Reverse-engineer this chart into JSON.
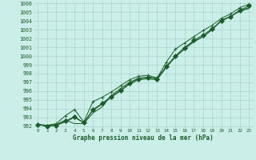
{
  "title": "Graphe pression niveau de la mer (hPa)",
  "bg_color": "#cceee8",
  "grid_color": "#aad4cc",
  "line_color": "#1a5c2a",
  "xlim": [
    -0.5,
    23.5
  ],
  "ylim": [
    991.8,
    1006.2
  ],
  "xtick_labels": [
    "0",
    "1",
    "2",
    "3",
    "4",
    "5",
    "6",
    "7",
    "8",
    "9",
    "10",
    "11",
    "12",
    "13",
    "14",
    "15",
    "16",
    "17",
    "18",
    "19",
    "20",
    "21",
    "22",
    "23"
  ],
  "xticks": [
    0,
    1,
    2,
    3,
    4,
    5,
    6,
    7,
    8,
    9,
    10,
    11,
    12,
    13,
    14,
    15,
    16,
    17,
    18,
    19,
    20,
    21,
    22,
    23
  ],
  "yticks": [
    992,
    993,
    994,
    995,
    996,
    997,
    998,
    999,
    1000,
    1001,
    1002,
    1003,
    1004,
    1005,
    1006
  ],
  "series": [
    {
      "y": [
        992.2,
        992.1,
        992.2,
        992.7,
        992.3,
        992.3,
        993.5,
        994.2,
        995.5,
        996.3,
        997.0,
        997.5,
        997.6,
        997.5,
        998.8,
        1000.0,
        1001.0,
        1001.7,
        1002.2,
        1003.0,
        1004.1,
        1004.5,
        1005.2,
        1005.5
      ],
      "marker": null
    },
    {
      "y": [
        992.2,
        992.1,
        992.3,
        993.2,
        993.9,
        992.5,
        994.8,
        995.3,
        995.9,
        996.6,
        997.3,
        997.7,
        997.8,
        997.5,
        999.3,
        1000.8,
        1001.5,
        1002.2,
        1002.9,
        1003.5,
        1004.3,
        1004.8,
        1005.5,
        1005.9
      ],
      "marker": "+"
    },
    {
      "y": [
        992.2,
        992.0,
        992.1,
        992.5,
        993.0,
        992.4,
        993.8,
        994.5,
        995.3,
        996.0,
        996.8,
        997.3,
        997.4,
        997.3,
        998.7,
        999.9,
        1000.8,
        1001.6,
        1002.2,
        1003.0,
        1004.0,
        1004.5,
        1005.1,
        1005.4
      ],
      "marker": null
    },
    {
      "y": [
        992.2,
        992.0,
        992.1,
        992.6,
        993.1,
        992.4,
        993.9,
        994.6,
        995.4,
        996.1,
        996.9,
        997.4,
        997.5,
        997.4,
        998.8,
        1000.0,
        1000.9,
        1001.8,
        1002.4,
        1003.1,
        1004.0,
        1004.5,
        1005.2,
        1005.7
      ],
      "marker": "D"
    }
  ]
}
